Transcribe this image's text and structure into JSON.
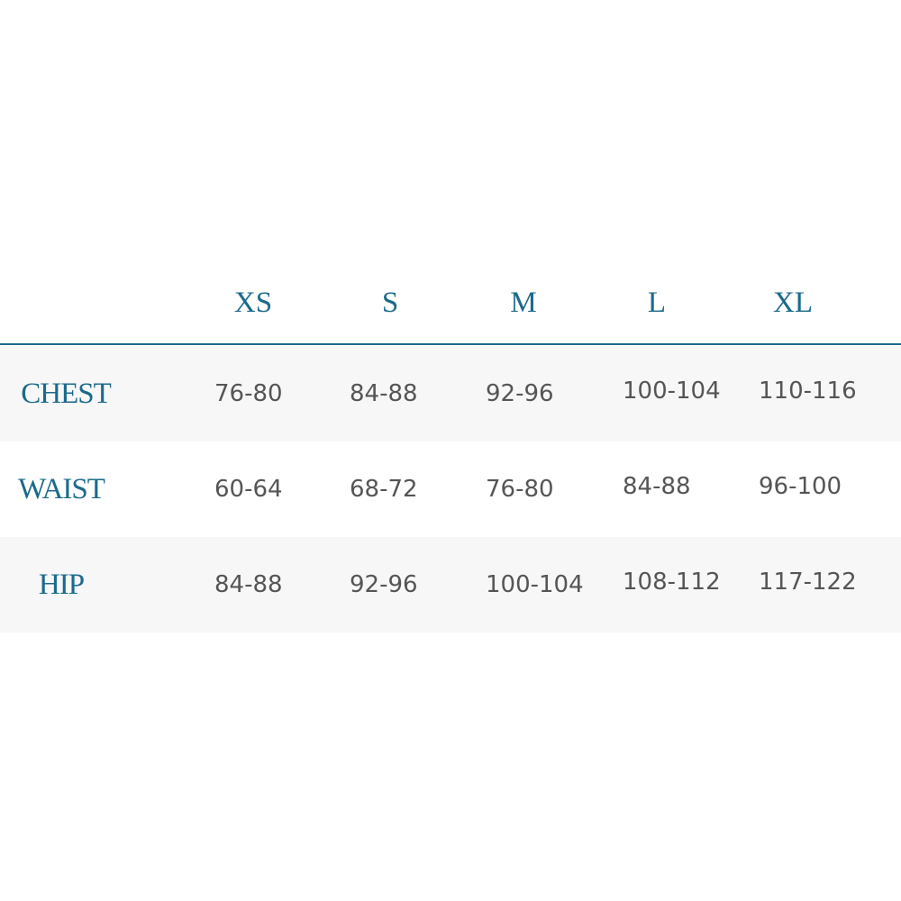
{
  "header": {
    "sizes": [
      "XS",
      "S",
      "M",
      "L",
      "XL"
    ]
  },
  "rows": [
    {
      "label": "CHEST",
      "values": [
        "76-80",
        "84-88",
        "92-96",
        "100-104",
        "110-116"
      ]
    },
    {
      "label": "WAIST",
      "values": [
        "60-64",
        "68-72",
        "76-80",
        "84-88",
        "96-100"
      ]
    },
    {
      "label": "HIP",
      "values": [
        "84-88",
        "92-96",
        "100-104",
        "108-112",
        "117-122"
      ]
    }
  ],
  "colors": {
    "accent": "#1b6a8c",
    "text": "#555555",
    "row_shade": "#f7f7f7"
  }
}
